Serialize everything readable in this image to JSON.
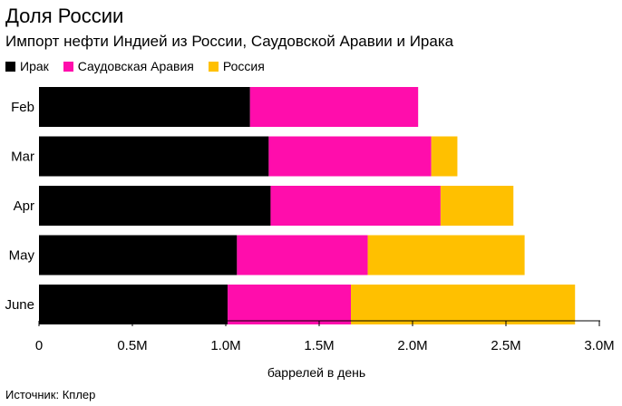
{
  "title": "Доля России",
  "subtitle": "Импорт нефти Индией из России, Саудовской Аравии и Ирака",
  "source": "Источник: Кплер",
  "chart_data": {
    "type": "bar",
    "orientation": "horizontal",
    "stacked": true,
    "categories": [
      "Feb",
      "Mar",
      "Apr",
      "May",
      "June"
    ],
    "series": [
      {
        "name": "Ирак",
        "color": "#000000",
        "values": [
          1.13,
          1.23,
          1.24,
          1.06,
          1.01
        ]
      },
      {
        "name": "Саудовская Аравия",
        "color": "#ff0dac",
        "values": [
          0.9,
          0.87,
          0.91,
          0.7,
          0.66
        ]
      },
      {
        "name": "Россия",
        "color": "#ffc000",
        "values": [
          0.0,
          0.14,
          0.39,
          0.84,
          1.2
        ]
      }
    ],
    "xlim": [
      0,
      3.0
    ],
    "xticks": [
      0,
      0.5,
      1.0,
      1.5,
      2.0,
      2.5,
      3.0
    ],
    "xtick_labels": [
      "0",
      "0.5M",
      "1.0M",
      "1.5M",
      "2.0M",
      "2.5M",
      "3.0M"
    ],
    "xlabel": "баррелей в день",
    "ylabel": "",
    "grid": false,
    "legend_position": "top-left"
  }
}
